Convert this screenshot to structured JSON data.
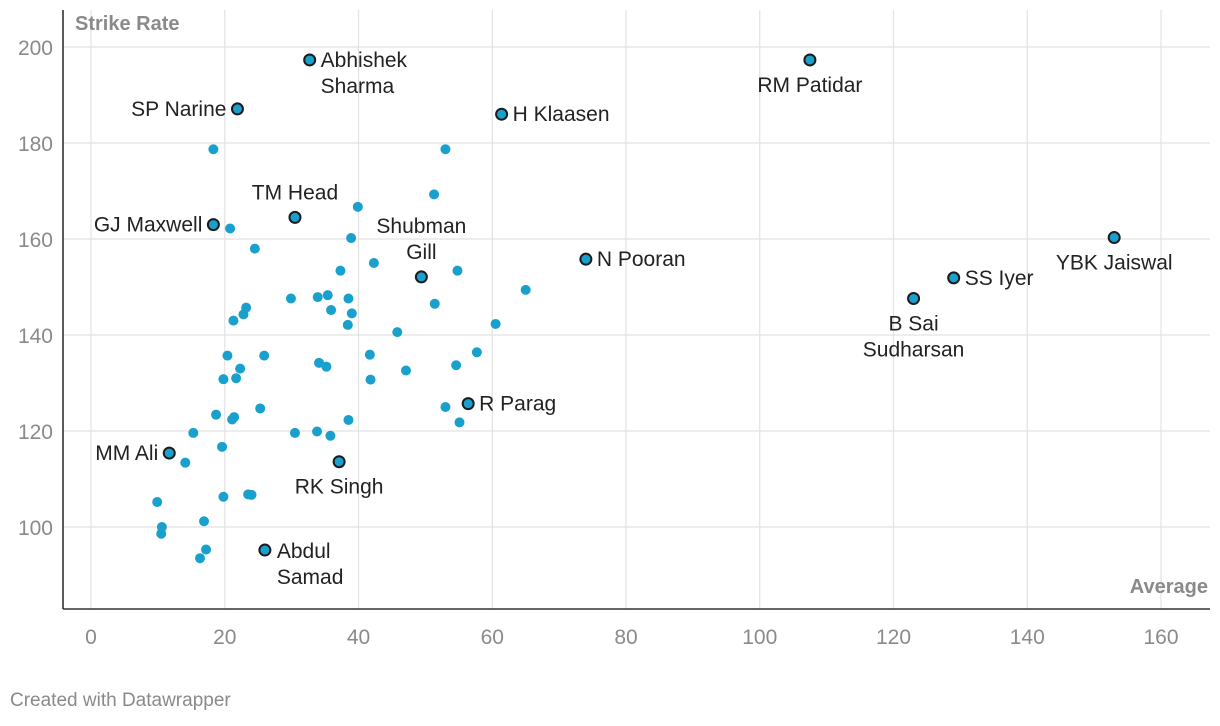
{
  "chart_data": {
    "type": "scatter",
    "title": "",
    "xlabel": "Average",
    "ylabel": "Strike Rate",
    "xlim": [
      -5,
      167
    ],
    "ylim": [
      83,
      207
    ],
    "x_ticks": [
      0,
      20,
      40,
      60,
      80,
      100,
      120,
      140,
      160
    ],
    "y_ticks": [
      100,
      120,
      140,
      160,
      180,
      200
    ],
    "grid": true,
    "colors": {
      "point": "#1aa0cc",
      "highlight_stroke": "#1b1b1b",
      "grid": "#e2e2e2"
    },
    "points": [
      {
        "x": 18.3,
        "y": 178.7
      },
      {
        "x": 53.0,
        "y": 178.7
      },
      {
        "x": 51.3,
        "y": 169.3
      },
      {
        "x": 39.9,
        "y": 166.7
      },
      {
        "x": 20.8,
        "y": 162.2
      },
      {
        "x": 38.9,
        "y": 160.2
      },
      {
        "x": 24.5,
        "y": 158.0
      },
      {
        "x": 42.3,
        "y": 155.0
      },
      {
        "x": 37.3,
        "y": 153.4
      },
      {
        "x": 54.8,
        "y": 153.4
      },
      {
        "x": 65.0,
        "y": 149.4
      },
      {
        "x": 29.9,
        "y": 147.6
      },
      {
        "x": 33.9,
        "y": 147.9
      },
      {
        "x": 35.4,
        "y": 148.3
      },
      {
        "x": 38.5,
        "y": 147.6
      },
      {
        "x": 51.4,
        "y": 146.5
      },
      {
        "x": 23.2,
        "y": 145.7
      },
      {
        "x": 22.8,
        "y": 144.3
      },
      {
        "x": 35.9,
        "y": 145.2
      },
      {
        "x": 39.0,
        "y": 144.5
      },
      {
        "x": 21.3,
        "y": 143.0
      },
      {
        "x": 38.4,
        "y": 142.1
      },
      {
        "x": 60.5,
        "y": 142.3
      },
      {
        "x": 45.8,
        "y": 140.6
      },
      {
        "x": 20.4,
        "y": 135.7
      },
      {
        "x": 25.9,
        "y": 135.7
      },
      {
        "x": 41.7,
        "y": 135.9
      },
      {
        "x": 57.7,
        "y": 136.4
      },
      {
        "x": 34.1,
        "y": 134.2
      },
      {
        "x": 35.2,
        "y": 133.4
      },
      {
        "x": 54.6,
        "y": 133.7
      },
      {
        "x": 22.3,
        "y": 133.0
      },
      {
        "x": 19.8,
        "y": 130.8
      },
      {
        "x": 21.7,
        "y": 131.0
      },
      {
        "x": 41.8,
        "y": 130.7
      },
      {
        "x": 47.1,
        "y": 132.6
      },
      {
        "x": 25.3,
        "y": 124.7
      },
      {
        "x": 53.0,
        "y": 125.0
      },
      {
        "x": 18.7,
        "y": 123.4
      },
      {
        "x": 21.1,
        "y": 122.4
      },
      {
        "x": 21.4,
        "y": 122.9
      },
      {
        "x": 38.5,
        "y": 122.3
      },
      {
        "x": 55.1,
        "y": 121.8
      },
      {
        "x": 15.3,
        "y": 119.6
      },
      {
        "x": 30.5,
        "y": 119.6
      },
      {
        "x": 33.8,
        "y": 119.9
      },
      {
        "x": 35.8,
        "y": 119.0
      },
      {
        "x": 19.6,
        "y": 116.7
      },
      {
        "x": 14.1,
        "y": 113.4
      },
      {
        "x": 19.8,
        "y": 106.3
      },
      {
        "x": 23.5,
        "y": 106.8
      },
      {
        "x": 24.0,
        "y": 106.7
      },
      {
        "x": 9.9,
        "y": 105.2
      },
      {
        "x": 16.9,
        "y": 101.2
      },
      {
        "x": 10.6,
        "y": 100.0
      },
      {
        "x": 10.5,
        "y": 98.6
      },
      {
        "x": 17.2,
        "y": 95.3
      },
      {
        "x": 16.3,
        "y": 93.5
      }
    ],
    "highlighted": [
      {
        "name": "Abhishek Sharma",
        "lines": [
          "Abhishek",
          "Sharma"
        ],
        "x": 32.7,
        "y": 197.3,
        "label_pos": "right"
      },
      {
        "name": "RM Patidar",
        "lines": [
          "RM Patidar"
        ],
        "x": 107.5,
        "y": 197.3,
        "label_pos": "below"
      },
      {
        "name": "SP Narine",
        "lines": [
          "SP Narine"
        ],
        "x": 21.9,
        "y": 187.1,
        "label_pos": "left"
      },
      {
        "name": "H Klaasen",
        "lines": [
          "H Klaasen"
        ],
        "x": 61.4,
        "y": 186.0,
        "label_pos": "right"
      },
      {
        "name": "TM Head",
        "lines": [
          "TM Head"
        ],
        "x": 30.5,
        "y": 164.5,
        "label_pos": "above"
      },
      {
        "name": "GJ Maxwell",
        "lines": [
          "GJ Maxwell"
        ],
        "x": 18.3,
        "y": 163.0,
        "label_pos": "left"
      },
      {
        "name": "Shubman Gill",
        "lines": [
          "Shubman",
          "Gill"
        ],
        "x": 49.4,
        "y": 152.1,
        "label_pos": "above"
      },
      {
        "name": "N Pooran",
        "lines": [
          "N Pooran"
        ],
        "x": 74.0,
        "y": 155.8,
        "label_pos": "right"
      },
      {
        "name": "YBK Jaiswal",
        "lines": [
          "YBK Jaiswal"
        ],
        "x": 153.0,
        "y": 160.3,
        "label_pos": "below"
      },
      {
        "name": "SS Iyer",
        "lines": [
          "SS Iyer"
        ],
        "x": 129.0,
        "y": 151.9,
        "label_pos": "right"
      },
      {
        "name": "B Sai Sudharsan",
        "lines": [
          "B Sai",
          "Sudharsan"
        ],
        "x": 123.0,
        "y": 147.6,
        "label_pos": "below"
      },
      {
        "name": "R Parag",
        "lines": [
          "R Parag"
        ],
        "x": 56.4,
        "y": 125.7,
        "label_pos": "right"
      },
      {
        "name": "MM Ali",
        "lines": [
          "MM Ali"
        ],
        "x": 11.7,
        "y": 115.4,
        "label_pos": "left"
      },
      {
        "name": "RK Singh",
        "lines": [
          "RK Singh"
        ],
        "x": 37.1,
        "y": 113.6,
        "label_pos": "below"
      },
      {
        "name": "Abdul Samad",
        "lines": [
          "Abdul",
          "Samad"
        ],
        "x": 26.0,
        "y": 95.2,
        "label_pos": "right-below"
      }
    ]
  },
  "footer": {
    "credit": "Created with Datawrapper"
  }
}
